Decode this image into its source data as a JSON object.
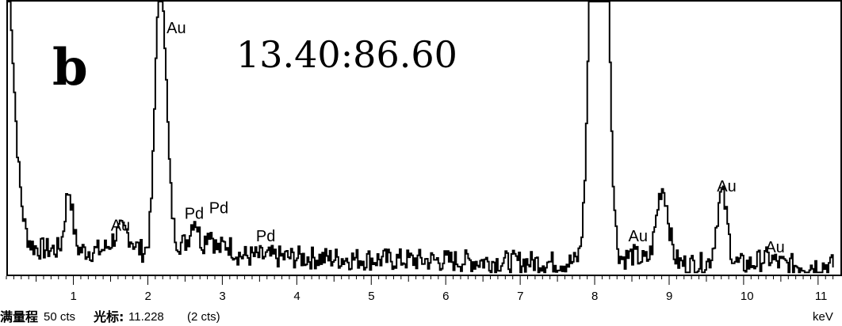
{
  "chart_data": {
    "type": "line",
    "panel_label": "b",
    "annotation": "13.40:86.60",
    "xlabel": "keV",
    "xlim": [
      0.1,
      11.2
    ],
    "ylim": [
      0,
      50
    ],
    "x_ticks": [
      1,
      2,
      3,
      4,
      5,
      6,
      7,
      8,
      9,
      10,
      11
    ],
    "peak_labels": [
      {
        "text": "Au",
        "x": 1.63,
        "y": 7.8
      },
      {
        "text": "Au",
        "x": 2.38,
        "y": 44.2
      },
      {
        "text": "Pd",
        "x": 2.62,
        "y": 10.0
      },
      {
        "text": "Pd",
        "x": 2.95,
        "y": 11.0
      },
      {
        "text": "Pd",
        "x": 3.58,
        "y": 5.8
      },
      {
        "text": "Au",
        "x": 8.58,
        "y": 5.8
      },
      {
        "text": "Au",
        "x": 9.77,
        "y": 15.0
      },
      {
        "text": "Au",
        "x": 10.42,
        "y": 3.8
      }
    ],
    "peaks": [
      {
        "x": 0.0,
        "h": 80,
        "w": 0.14
      },
      {
        "x": 0.93,
        "h": 11,
        "w": 0.05
      },
      {
        "x": 1.65,
        "h": 4,
        "w": 0.12
      },
      {
        "x": 2.14,
        "h": 33,
        "w": 0.06
      },
      {
        "x": 2.2,
        "h": 26,
        "w": 0.07
      },
      {
        "x": 2.5,
        "h": 2,
        "w": 0.2
      },
      {
        "x": 2.62,
        "h": 5,
        "w": 0.05
      },
      {
        "x": 2.82,
        "h": 4,
        "w": 0.05
      },
      {
        "x": 3.05,
        "h": 2,
        "w": 0.08
      },
      {
        "x": 8.05,
        "h": 150,
        "w": 0.09
      },
      {
        "x": 8.5,
        "h": 1.5,
        "w": 0.1
      },
      {
        "x": 8.9,
        "h": 14,
        "w": 0.08
      },
      {
        "x": 9.7,
        "h": 13,
        "w": 0.07
      },
      {
        "x": 10.3,
        "h": 1.2,
        "w": 0.1
      }
    ],
    "background": 4.0
  },
  "status_bar": {
    "label_bold": "满量程",
    "full_scale": "50 cts",
    "cursor_label": "光标:",
    "cursor_value": "11.228",
    "cursor_counts": "(2 cts)"
  }
}
